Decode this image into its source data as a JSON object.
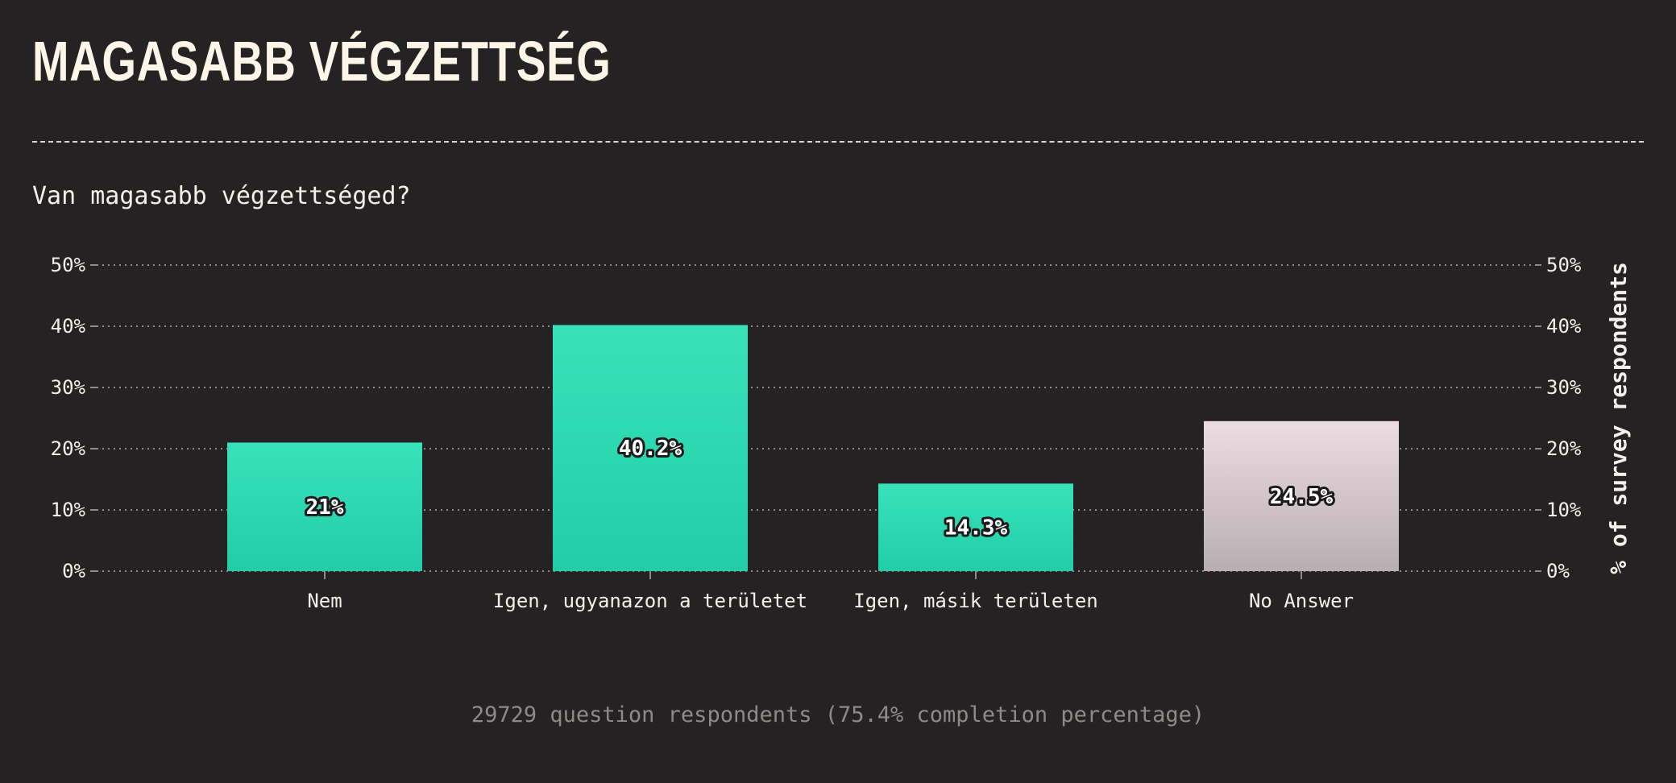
{
  "title": "MAGASABB VÉGZETTSÉG",
  "subtitle": "Van magasabb végzettséged?",
  "footer": "29729 question respondents (75.4% completion percentage)",
  "colors": {
    "background": "#252223",
    "bar_primary_top": "#38e2b9",
    "bar_primary_bottom": "#21cea8",
    "bar_noanswer_top": "#ecdde1",
    "bar_noanswer_bottom": "#b8aeb1",
    "grid": "#8f8b89",
    "text": "#f3efe9"
  },
  "chart_data": {
    "type": "bar",
    "categories": [
      "Nem",
      "Igen, ugyanazon a területet",
      "Igen, másik területen",
      "No Answer"
    ],
    "values": [
      21,
      40.2,
      14.3,
      24.5
    ],
    "value_labels": [
      "21%",
      "40.2%",
      "14.3%",
      "24.5%"
    ],
    "ylim": [
      0,
      50
    ],
    "yticks": [
      0,
      10,
      20,
      30,
      40,
      50
    ],
    "ytick_labels": [
      "0%",
      "10%",
      "20%",
      "30%",
      "40%",
      "50%"
    ],
    "ylabel": "% of survey respondents",
    "grid": true,
    "y_axis_both_sides": true
  }
}
